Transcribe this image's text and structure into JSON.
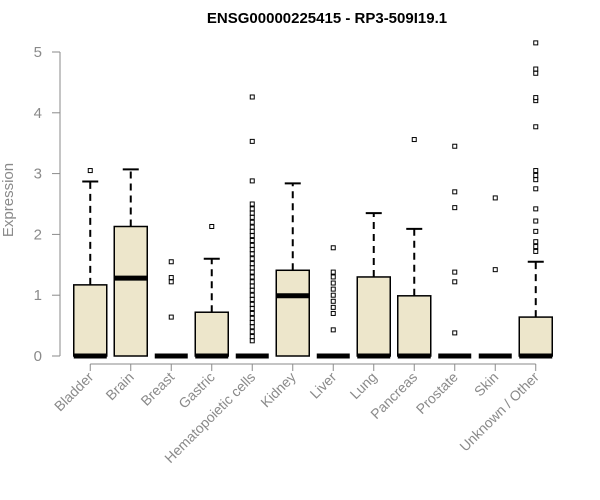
{
  "chart_data": {
    "type": "boxplot",
    "title": "ENSG00000225415 - RP3-509I19.1",
    "xlabel": "",
    "ylabel": "Expression",
    "ylim": [
      0,
      5.15
    ],
    "yticks": [
      "0",
      "1",
      "2",
      "3",
      "4",
      "5"
    ],
    "grid": false,
    "box_fill": "#ede6cb",
    "categories": [
      "Bladder",
      "Brain",
      "Breast",
      "Gastric",
      "Hematopoietic cells",
      "Kidney",
      "Liver",
      "Lung",
      "Pancreas",
      "Prostate",
      "Skin",
      "Unknown / Other"
    ],
    "boxes": [
      {
        "q1": 0,
        "median": 0,
        "q3": 1.17,
        "whisker_low": 0,
        "whisker_high": 2.87,
        "outliers": [
          3.05
        ]
      },
      {
        "q1": 0,
        "median": 1.28,
        "q3": 2.13,
        "whisker_low": 0,
        "whisker_high": 3.07,
        "outliers": []
      },
      {
        "q1": 0,
        "median": 0,
        "q3": 0,
        "whisker_low": 0,
        "whisker_high": 0,
        "outliers": [
          0.64,
          1.22,
          1.29,
          1.55
        ]
      },
      {
        "q1": 0,
        "median": 0,
        "q3": 0.72,
        "whisker_low": 0,
        "whisker_high": 1.6,
        "outliers": [
          2.13
        ]
      },
      {
        "q1": 0,
        "median": 0,
        "q3": 0,
        "whisker_low": 0,
        "whisker_high": 0,
        "outliers": [
          0.25,
          0.32,
          0.4,
          0.48,
          0.55,
          0.62,
          0.7,
          0.78,
          0.85,
          0.93,
          1.0,
          1.08,
          1.15,
          1.22,
          1.3,
          1.38,
          1.45,
          1.52,
          1.6,
          1.68,
          1.75,
          1.82,
          1.9,
          1.98,
          2.05,
          2.12,
          2.2,
          2.28,
          2.35,
          2.42,
          2.5,
          2.88,
          3.53,
          4.26
        ]
      },
      {
        "q1": 0,
        "median": 0.99,
        "q3": 1.41,
        "whisker_low": 0,
        "whisker_high": 2.84,
        "outliers": []
      },
      {
        "q1": 0,
        "median": 0,
        "q3": 0,
        "whisker_low": 0,
        "whisker_high": 0,
        "outliers": [
          0.43,
          0.7,
          0.8,
          0.9,
          1.0,
          1.1,
          1.2,
          1.3,
          1.38,
          1.78
        ]
      },
      {
        "q1": 0,
        "median": 0,
        "q3": 1.3,
        "whisker_low": 0,
        "whisker_high": 2.35,
        "outliers": []
      },
      {
        "q1": 0,
        "median": 0,
        "q3": 0.99,
        "whisker_low": 0,
        "whisker_high": 2.09,
        "outliers": [
          3.56
        ]
      },
      {
        "q1": 0,
        "median": 0,
        "q3": 0,
        "whisker_low": 0,
        "whisker_high": 0,
        "outliers": [
          0.38,
          1.22,
          1.38,
          2.44,
          2.7,
          3.45
        ]
      },
      {
        "q1": 0,
        "median": 0,
        "q3": 0,
        "whisker_low": 0,
        "whisker_high": 0,
        "outliers": [
          1.42,
          2.6
        ]
      },
      {
        "q1": 0,
        "median": 0,
        "q3": 0.64,
        "whisker_low": 0,
        "whisker_high": 1.55,
        "outliers": [
          1.72,
          1.8,
          1.88,
          2.05,
          2.22,
          2.42,
          2.75,
          2.9,
          2.97,
          3.05,
          3.77,
          4.2,
          4.25,
          4.65,
          4.72,
          5.15
        ]
      }
    ]
  }
}
